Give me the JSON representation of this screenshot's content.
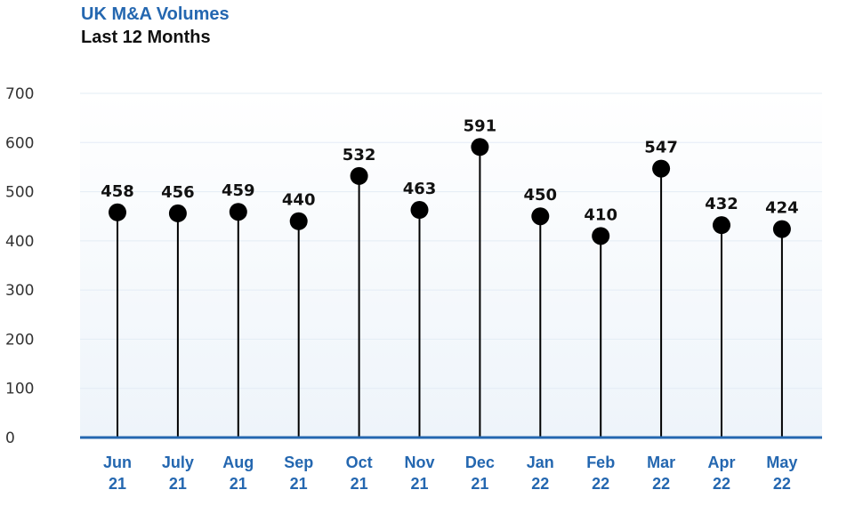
{
  "header": {
    "title": "UK M&A Volumes",
    "subtitle": "Last 12 Months"
  },
  "colors": {
    "title": "#2467b0",
    "axis": "#2467b0",
    "marker": "#000000",
    "grid": "#e3ecf5",
    "plot_bg_top": "#ffffff",
    "plot_bg_bottom": "#eef4fa"
  },
  "chart_data": {
    "type": "lollipop",
    "title": "UK M&A Volumes",
    "subtitle": "Last 12 Months",
    "categories": [
      [
        "Jun",
        "21"
      ],
      [
        "July",
        "21"
      ],
      [
        "Aug",
        "21"
      ],
      [
        "Sep",
        "21"
      ],
      [
        "Oct",
        "21"
      ],
      [
        "Nov",
        "21"
      ],
      [
        "Dec",
        "21"
      ],
      [
        "Jan",
        "22"
      ],
      [
        "Feb",
        "22"
      ],
      [
        "Mar",
        "22"
      ],
      [
        "Apr",
        "22"
      ],
      [
        "May",
        "22"
      ]
    ],
    "values": [
      458,
      456,
      459,
      440,
      532,
      463,
      591,
      450,
      410,
      547,
      432,
      424
    ],
    "yticks": [
      0,
      100,
      200,
      300,
      400,
      500,
      600,
      700
    ],
    "ylim": [
      0,
      700
    ],
    "grid": true,
    "legend": "none"
  }
}
